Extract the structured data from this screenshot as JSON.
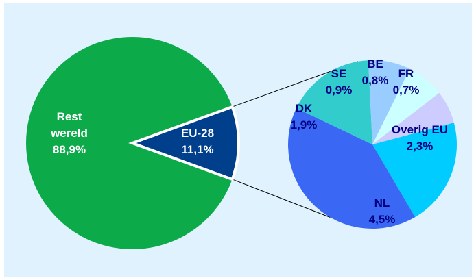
{
  "chart_data": {
    "type": "pie",
    "main": {
      "slices": [
        {
          "label": "Rest wereld",
          "value": 88.9,
          "value_label": "88,9%",
          "color": "#0daa4a",
          "text_color": "#ffffff"
        },
        {
          "label": "EU-28",
          "value": 11.1,
          "value_label": "11,1%",
          "color": "#003f8c",
          "text_color": "#ffffff"
        }
      ]
    },
    "breakdown": {
      "parent": "EU-28",
      "slices": [
        {
          "label": "Overig EU",
          "value": 2.3,
          "value_label": "2,3%",
          "color": "#00ccff",
          "text_color": "#000080"
        },
        {
          "label": "NL",
          "value": 4.5,
          "value_label": "4,5%",
          "color": "#3a68f5",
          "text_color": "#000080"
        },
        {
          "label": "DK",
          "value": 1.9,
          "value_label": "1,9%",
          "color": "#33cccc",
          "text_color": "#000080"
        },
        {
          "label": "SE",
          "value": 0.9,
          "value_label": "0,9%",
          "color": "#99ccff",
          "text_color": "#000080"
        },
        {
          "label": "BE",
          "value": 0.8,
          "value_label": "0,8%",
          "color": "#ccffff",
          "text_color": "#000080"
        },
        {
          "label": "FR",
          "value": 0.7,
          "value_label": "0,7%",
          "color": "#ccccff",
          "text_color": "#000080"
        }
      ]
    }
  }
}
